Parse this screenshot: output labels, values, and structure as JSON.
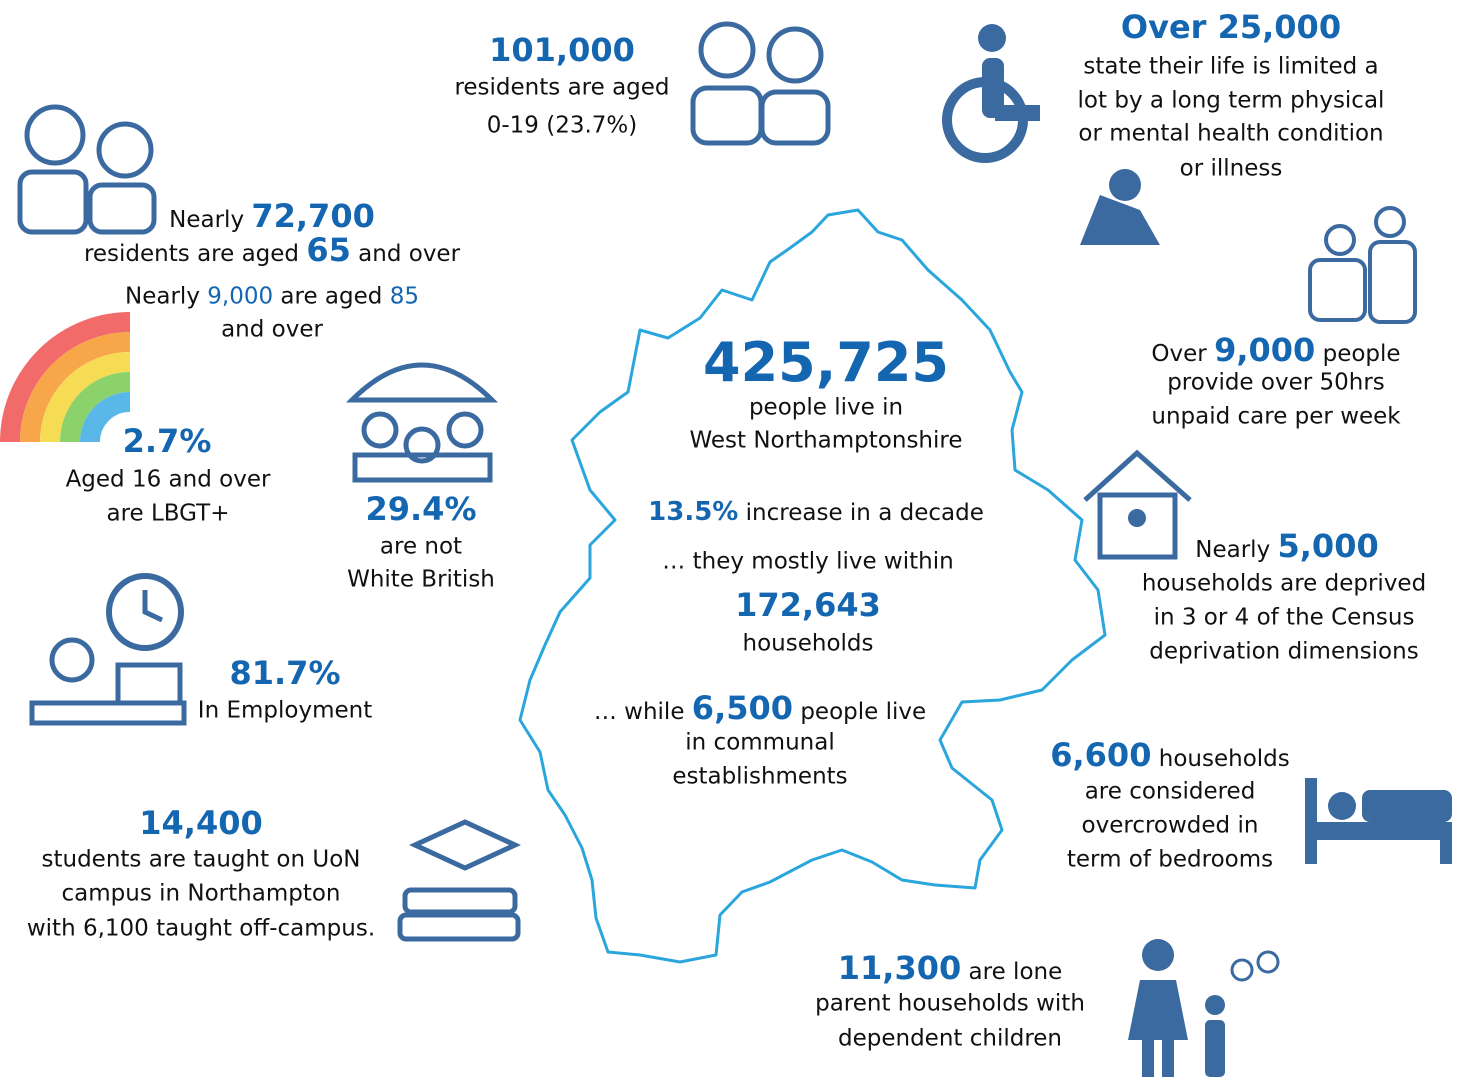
{
  "blocks": [
    {
      "lines": [
        [
          "101,000"
        ],
        [
          "residents are aged"
        ],
        [
          "0-19 (23.7%)"
        ]
      ]
    },
    {
      "lines": [
        [
          "Over 25,000"
        ],
        [
          "state their life is limited a"
        ],
        [
          "lot by a long term physical"
        ],
        [
          "or mental health condition"
        ],
        [
          "or illness"
        ]
      ]
    },
    {
      "lines": [
        [
          "Nearly ",
          "72,700"
        ],
        [
          "residents are aged ",
          "65",
          " and over"
        ],
        [
          "Nearly ",
          "9,000",
          " are aged ",
          "85"
        ],
        [
          "and over"
        ]
      ]
    },
    {
      "lines": [
        [
          "2.7%"
        ],
        [
          "Aged 16 and over"
        ],
        [
          "are LBGT+"
        ]
      ]
    },
    {
      "lines": [
        [
          "29.4%"
        ],
        [
          "are not"
        ],
        [
          "White British"
        ]
      ]
    },
    {
      "lines": [
        [
          "81.7%"
        ],
        [
          "In Employment"
        ]
      ]
    },
    {
      "lines": [
        [
          "14,400"
        ],
        [
          "students are taught on UoN"
        ],
        [
          "campus in Northampton"
        ],
        [
          "with 6,100 taught off-campus."
        ]
      ]
    },
    {
      "lines": [
        [
          "425,725"
        ],
        [
          "people live in"
        ],
        [
          "West Northamptonshire"
        ],
        [
          "13.5%",
          " increase in a decade"
        ],
        [
          "… they mostly live within"
        ],
        [
          "172,643"
        ],
        [
          "households"
        ],
        [
          "… while ",
          "6,500",
          " people live"
        ],
        [
          "in communal"
        ],
        [
          "establishments"
        ]
      ]
    },
    {
      "lines": [
        [
          "Over ",
          "9,000",
          " people"
        ],
        [
          "provide over 50hrs"
        ],
        [
          "unpaid care per week"
        ]
      ]
    },
    {
      "lines": [
        [
          "Nearly ",
          "5,000"
        ],
        [
          "households are deprived"
        ],
        [
          "in 3 or 4 of the Census"
        ],
        [
          "deprivation dimensions"
        ]
      ]
    },
    {
      "lines": [
        [
          "6,600",
          " households"
        ],
        [
          "are considered"
        ],
        [
          "overcrowded in"
        ],
        [
          "term of bedrooms"
        ]
      ]
    },
    {
      "lines": [
        [
          "11,300",
          " are lone"
        ],
        [
          "parent households with"
        ],
        [
          "dependent children"
        ]
      ]
    }
  ]
}
